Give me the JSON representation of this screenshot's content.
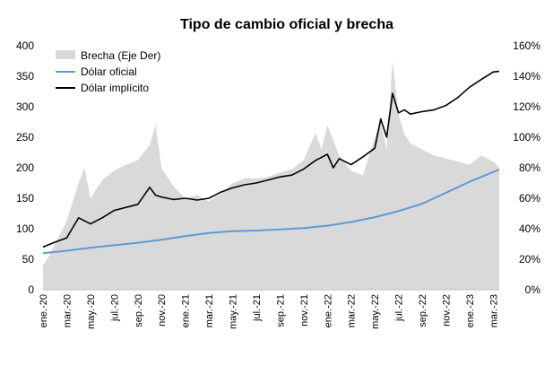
{
  "chart_data": {
    "type": "line",
    "title": "Tipo de cambio oficial y brecha",
    "left_axis": {
      "ylim": [
        0,
        400
      ],
      "ticks": [
        "0",
        "50",
        "100",
        "150",
        "200",
        "250",
        "300",
        "350",
        "400"
      ]
    },
    "right_axis": {
      "ylim": [
        0,
        160
      ],
      "ticks": [
        "0%",
        "20%",
        "40%",
        "60%",
        "80%",
        "100%",
        "120%",
        "140%",
        "160%"
      ]
    },
    "x_ticks": [
      "ene.-20",
      "mar.-20",
      "may.-20",
      "jul.-20",
      "sep.-20",
      "nov.-20",
      "ene.-21",
      "mar.-21",
      "may.-21",
      "jul.-21",
      "sep.-21",
      "nov.-21",
      "ene.-22",
      "mar.-22",
      "may.-22",
      "jul.-22",
      "sep.-22",
      "nov.-22",
      "ene.-23",
      "mar.-23"
    ],
    "legend": {
      "position": "top-left",
      "brecha": "Brecha (Eje Der)",
      "oficial": "Dólar oficial",
      "implicito": "Dólar implícito"
    },
    "colors": {
      "brecha": "#d9d9d9",
      "oficial": "#5b9bd5",
      "implicito": "#000000"
    },
    "series": [
      {
        "name": "Dólar oficial",
        "axis": "left",
        "x": [
          0,
          2,
          4,
          6,
          8,
          10,
          12,
          14,
          16,
          18,
          20,
          22,
          24,
          26,
          28,
          30,
          32,
          34,
          36,
          38.5
        ],
        "values": [
          60,
          64,
          69,
          73,
          77,
          82,
          88,
          93,
          96,
          97,
          99,
          101,
          105,
          111,
          119,
          129,
          141,
          159,
          177,
          197
        ]
      },
      {
        "name": "Dólar implícito",
        "axis": "left",
        "x": [
          0,
          1,
          2,
          3,
          4,
          5,
          6,
          7,
          8,
          9,
          9.5,
          10,
          11,
          12,
          13,
          14,
          15,
          16,
          17,
          18,
          19,
          20,
          21,
          22,
          23,
          24,
          24.5,
          25,
          26,
          27,
          28,
          28.5,
          29,
          29.5,
          30,
          30.5,
          31,
          32,
          33,
          34,
          35,
          36,
          37,
          38,
          38.5
        ],
        "values": [
          70,
          78,
          85,
          118,
          108,
          118,
          130,
          135,
          140,
          168,
          155,
          152,
          148,
          150,
          147,
          150,
          160,
          167,
          172,
          175,
          180,
          185,
          188,
          198,
          212,
          222,
          200,
          215,
          205,
          218,
          232,
          280,
          250,
          322,
          290,
          295,
          288,
          292,
          295,
          302,
          315,
          332,
          345,
          357,
          358
        ]
      },
      {
        "name": "Brecha (Eje Der)",
        "axis": "right",
        "x": [
          0,
          0.5,
          1,
          2,
          3,
          3.5,
          4,
          5,
          6,
          7,
          8,
          9,
          9.5,
          10,
          11,
          12,
          13,
          14,
          15,
          16,
          17,
          18,
          19,
          20,
          21,
          22,
          23,
          23.5,
          24,
          25,
          26,
          27,
          28,
          28.5,
          29,
          29.5,
          30,
          30.5,
          31,
          32,
          33,
          34,
          35,
          36,
          37,
          38,
          38.5
        ],
        "values": [
          16,
          22,
          30,
          45,
          70,
          80,
          60,
          72,
          78,
          82,
          85,
          95,
          108,
          80,
          68,
          60,
          62,
          58,
          63,
          70,
          73,
          73,
          74,
          77,
          79,
          85,
          103,
          92,
          108,
          88,
          78,
          75,
          100,
          110,
          92,
          150,
          115,
          102,
          96,
          92,
          88,
          86,
          84,
          82,
          88,
          84,
          80
        ]
      }
    ]
  }
}
